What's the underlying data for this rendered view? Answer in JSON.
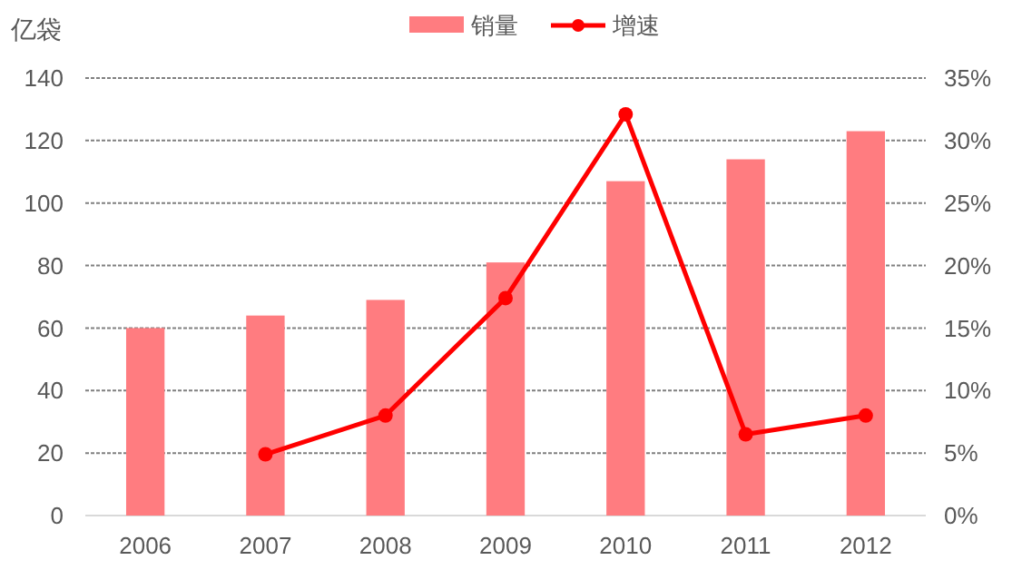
{
  "chart_data": {
    "type": "bar",
    "ylabel": "亿袋",
    "categories": [
      "2006",
      "2007",
      "2008",
      "2009",
      "2010",
      "2011",
      "2012"
    ],
    "series": [
      {
        "name": "销量",
        "color": "#ff7c80",
        "values": [
          60,
          64,
          69,
          81,
          107,
          114,
          123
        ]
      },
      {
        "name": "增速",
        "type": "line",
        "axis": "y2",
        "color": "#ff0000",
        "marker": "circle",
        "values": [
          null,
          4.9,
          8.0,
          17.4,
          32.1,
          6.5,
          8.0
        ]
      }
    ],
    "ylim": [
      0,
      140
    ],
    "yticks": [
      0,
      20,
      40,
      60,
      80,
      100,
      120,
      140
    ],
    "y2lim": [
      0,
      35
    ],
    "y2ticks": [
      {
        "value": 0,
        "label": "0%"
      },
      {
        "value": 5,
        "label": "5%"
      },
      {
        "value": 10,
        "label": "10%"
      },
      {
        "value": 15,
        "label": "15%"
      },
      {
        "value": 20,
        "label": "20%"
      },
      {
        "value": 25,
        "label": "25%"
      },
      {
        "value": 30,
        "label": "30%"
      },
      {
        "value": 35,
        "label": "35%"
      }
    ],
    "grid": "y",
    "legend": "top"
  }
}
